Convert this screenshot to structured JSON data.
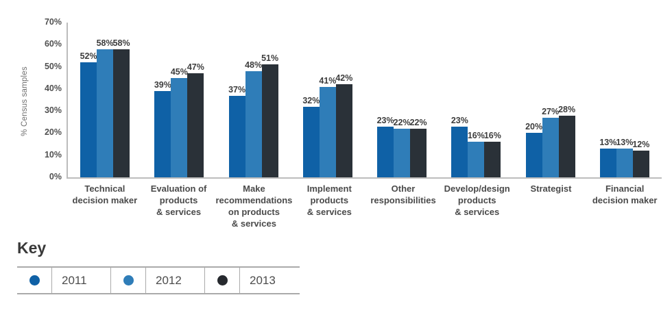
{
  "chart_data": {
    "type": "bar",
    "title": "",
    "xlabel": "",
    "ylabel": "% Census samples",
    "ylim": [
      0,
      70
    ],
    "yticks": [
      0,
      10,
      20,
      30,
      40,
      50,
      60,
      70
    ],
    "ytick_format": "{v}%",
    "bar_label_format": "{v}%",
    "grid": false,
    "legend_position": "bottom-left",
    "categories": [
      "Technical\ndecision maker",
      "Evaluation of\nproducts\n& services",
      "Make\nrecommendations\non products\n& services",
      "Implement\nproducts\n& services",
      "Other\nresponsibilities",
      "Develop/design\nproducts\n& services",
      "Strategist",
      "Financial\ndecision maker"
    ],
    "series": [
      {
        "name": "2011",
        "color": "#0f61a6",
        "values": [
          52,
          39,
          37,
          32,
          23,
          23,
          20,
          13
        ]
      },
      {
        "name": "2012",
        "color": "#2f7db8",
        "values": [
          58,
          45,
          48,
          41,
          22,
          16,
          27,
          13
        ]
      },
      {
        "name": "2013",
        "color": "#2a3138",
        "values": [
          58,
          47,
          51,
          42,
          22,
          16,
          28,
          12
        ]
      }
    ]
  },
  "legend": {
    "title": "Key",
    "entries": [
      {
        "label": "2011",
        "color": "#0f61a6"
      },
      {
        "label": "2012",
        "color": "#2f7db8"
      },
      {
        "label": "2013",
        "color": "#26292e"
      }
    ]
  },
  "colors": {
    "axis_line": "#bcbcbc",
    "tick_text": "#505050",
    "bar_label_text": "#3d3d3d",
    "category_text": "#4a4a4a",
    "ylabel_text": "#6f6f6f",
    "legend_border": "#aaaaaa",
    "background": "#ffffff"
  }
}
